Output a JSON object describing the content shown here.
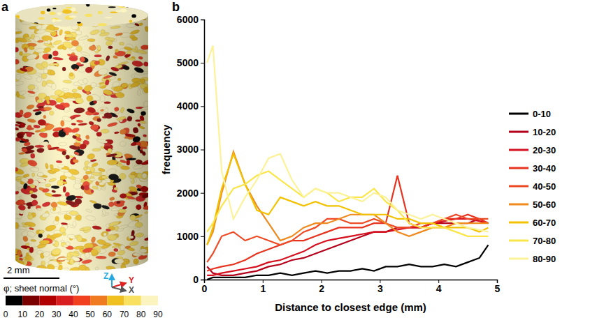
{
  "panel_labels": [
    "a",
    "b"
  ],
  "cylinder": {
    "scale_bar": "2 mm",
    "axes": [
      "Z",
      "Y",
      "X"
    ],
    "colorbar": {
      "title": "φ; sheet normal (°)",
      "range": [
        0,
        90
      ],
      "ticks": [
        0,
        10,
        20,
        30,
        40,
        50,
        60,
        70,
        80,
        90
      ],
      "colors": [
        "#000000",
        "#7a0000",
        "#b00000",
        "#d81e1e",
        "#f04020",
        "#f07a20",
        "#f0c020",
        "#f8e060",
        "#fbf3c0"
      ]
    }
  },
  "chart_data": {
    "type": "line",
    "x_label": "Distance to closest edge (mm)",
    "y_label": "frequency",
    "x": [
      0.05,
      0.15,
      0.3,
      0.5,
      0.7,
      0.9,
      1.1,
      1.3,
      1.5,
      1.7,
      1.9,
      2.1,
      2.3,
      2.5,
      2.7,
      2.9,
      3.1,
      3.3,
      3.5,
      3.7,
      3.9,
      4.1,
      4.3,
      4.5,
      4.7,
      4.85
    ],
    "series": [
      {
        "name": "0-10",
        "color": "#000000",
        "values": [
          0,
          50,
          50,
          50,
          50,
          100,
          100,
          150,
          100,
          150,
          200,
          150,
          200,
          200,
          250,
          200,
          300,
          300,
          350,
          300,
          300,
          350,
          300,
          400,
          500,
          800
        ]
      },
      {
        "name": "10-20",
        "color": "#b5001a",
        "values": [
          300,
          150,
          100,
          100,
          150,
          200,
          300,
          350,
          450,
          500,
          600,
          700,
          800,
          900,
          1000,
          1100,
          1100,
          1200,
          1200,
          1200,
          1300,
          1300,
          1300,
          1300,
          1400,
          1300
        ]
      },
      {
        "name": "20-30",
        "color": "#d6101e",
        "values": [
          100,
          100,
          150,
          200,
          250,
          300,
          400,
          450,
          550,
          650,
          800,
          900,
          950,
          1000,
          1050,
          1100,
          1100,
          1150,
          1200,
          1200,
          1300,
          1350,
          1400,
          1400,
          1350,
          1300
        ]
      },
      {
        "name": "30-40",
        "color": "#e6321e",
        "values": [
          200,
          250,
          300,
          350,
          450,
          600,
          700,
          800,
          900,
          900,
          1000,
          1100,
          1200,
          1200,
          1200,
          1300,
          1300,
          2400,
          1300,
          1200,
          1300,
          1400,
          1400,
          1500,
          1400,
          1300
        ]
      },
      {
        "name": "40-50",
        "color": "#ee4a26",
        "values": [
          400,
          600,
          1000,
          1100,
          900,
          1000,
          900,
          800,
          900,
          1100,
          1200,
          1400,
          1400,
          1300,
          1300,
          1400,
          1300,
          1200,
          1200,
          1300,
          1300,
          1400,
          1500,
          1400,
          1400,
          1400
        ]
      },
      {
        "name": "50-60",
        "color": "#f08a1e",
        "values": [
          800,
          1100,
          2000,
          2950,
          2200,
          1700,
          1300,
          900,
          1000,
          1200,
          1300,
          1300,
          1400,
          1500,
          1500,
          1500,
          1300,
          1100,
          1000,
          1100,
          1200,
          1200,
          1300,
          1300,
          1300,
          1300
        ]
      },
      {
        "name": "60-70",
        "color": "#f2c200",
        "values": [
          800,
          1200,
          2100,
          2900,
          2200,
          1600,
          1500,
          1900,
          1800,
          1700,
          1800,
          1700,
          1700,
          1600,
          1500,
          1500,
          1500,
          1400,
          1400,
          1300,
          1300,
          1200,
          1200,
          1200,
          1100,
          1200
        ]
      },
      {
        "name": "70-80",
        "color": "#fae64a",
        "values": [
          1100,
          1300,
          1700,
          2100,
          2200,
          2400,
          2500,
          2300,
          2100,
          1900,
          2100,
          2000,
          1800,
          1900,
          1900,
          2100,
          1800,
          1600,
          1300,
          1200,
          1200,
          1200,
          1100,
          1000,
          1000,
          1000
        ]
      },
      {
        "name": "80-90",
        "color": "#fbf29a",
        "values": [
          5000,
          5400,
          2500,
          1400,
          1900,
          2300,
          2800,
          2900,
          2300,
          1900,
          2100,
          2000,
          2000,
          1900,
          1800,
          2000,
          1900,
          1600,
          1500,
          1400,
          1500,
          1400,
          1300,
          1200,
          1150,
          1100
        ]
      }
    ],
    "xlim": [
      0,
      5
    ],
    "ylim": [
      0,
      6000
    ],
    "xticks": [
      0,
      1,
      2,
      3,
      4,
      5
    ],
    "yticks": [
      0,
      1000,
      2000,
      3000,
      4000,
      5000,
      6000
    ],
    "legend": "right",
    "grid": false
  }
}
